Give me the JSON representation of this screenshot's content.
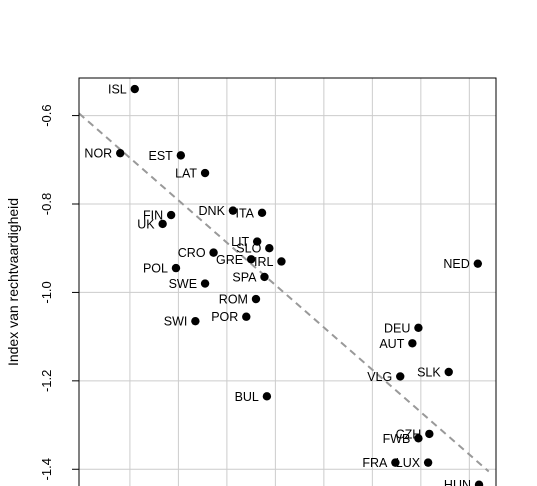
{
  "chart_data": {
    "type": "scatter",
    "title": "",
    "xlabel": "",
    "ylabel": "Index van rechtvaardigheid",
    "xlim": [
      -0.71,
      1.01
    ],
    "ylim": [
      -1.465,
      -0.515
    ],
    "yticks": [
      -0.6,
      -0.8,
      -1.0,
      -1.2,
      -1.4
    ],
    "ytick_labels": [
      "-0.6",
      "-0.8",
      "-1.0",
      "-1.2",
      "-1.4"
    ],
    "xgrid": [
      -0.5,
      -0.3,
      -0.1,
      0.1,
      0.3,
      0.5,
      0.7,
      0.9
    ],
    "grid": true,
    "trendline": {
      "x": [
        -0.71,
        0.98
      ],
      "y": [
        -0.595,
        -1.405
      ],
      "style": "dashed",
      "color": "#999999"
    },
    "points": [
      {
        "label": "ISL",
        "x": -0.48,
        "y": -0.54,
        "label_side": "left"
      },
      {
        "label": "NOR",
        "x": -0.54,
        "y": -0.685,
        "label_side": "left"
      },
      {
        "label": "EST",
        "x": -0.29,
        "y": -0.69,
        "label_side": "left"
      },
      {
        "label": "LAT",
        "x": -0.19,
        "y": -0.73,
        "label_side": "left"
      },
      {
        "label": "FIN",
        "x": -0.33,
        "y": -0.825,
        "label_side": "left"
      },
      {
        "label": "UK",
        "x": -0.365,
        "y": -0.845,
        "label_side": "left"
      },
      {
        "label": "DNK",
        "x": -0.075,
        "y": -0.815,
        "label_side": "left"
      },
      {
        "label": "ITA",
        "x": 0.045,
        "y": -0.82,
        "label_side": "left"
      },
      {
        "label": "LIT",
        "x": 0.025,
        "y": -0.885,
        "label_side": "left"
      },
      {
        "label": "SLO",
        "x": 0.075,
        "y": -0.9,
        "label_side": "left"
      },
      {
        "label": "GRE",
        "x": 0.0,
        "y": -0.925,
        "label_side": "left"
      },
      {
        "label": "IRL",
        "x": 0.125,
        "y": -0.93,
        "label_side": "left"
      },
      {
        "label": "CRO",
        "x": -0.155,
        "y": -0.91,
        "label_side": "left"
      },
      {
        "label": "POL",
        "x": -0.31,
        "y": -0.945,
        "label_side": "left"
      },
      {
        "label": "SPA",
        "x": 0.055,
        "y": -0.965,
        "label_side": "left"
      },
      {
        "label": "SWE",
        "x": -0.19,
        "y": -0.98,
        "label_side": "left"
      },
      {
        "label": "ROM",
        "x": 0.02,
        "y": -1.015,
        "label_side": "left"
      },
      {
        "label": "POR",
        "x": -0.02,
        "y": -1.055,
        "label_side": "left"
      },
      {
        "label": "SWI",
        "x": -0.23,
        "y": -1.065,
        "label_side": "left"
      },
      {
        "label": "NED",
        "x": 0.935,
        "y": -0.935,
        "label_side": "left"
      },
      {
        "label": "DEU",
        "x": 0.69,
        "y": -1.08,
        "label_side": "left"
      },
      {
        "label": "AUT",
        "x": 0.665,
        "y": -1.115,
        "label_side": "left"
      },
      {
        "label": "SLK",
        "x": 0.815,
        "y": -1.18,
        "label_side": "left"
      },
      {
        "label": "VLG",
        "x": 0.615,
        "y": -1.19,
        "label_side": "left"
      },
      {
        "label": "BUL",
        "x": 0.065,
        "y": -1.235,
        "label_side": "left"
      },
      {
        "label": "CZH",
        "x": 0.735,
        "y": -1.32,
        "label_side": "left"
      },
      {
        "label": "FWB",
        "x": 0.69,
        "y": -1.33,
        "label_side": "left"
      },
      {
        "label": "LUX",
        "x": 0.73,
        "y": -1.385,
        "label_side": "left"
      },
      {
        "label": "FRA",
        "x": 0.595,
        "y": -1.385,
        "label_side": "left"
      },
      {
        "label": "HUN",
        "x": 0.94,
        "y": -1.435,
        "label_side": "left"
      }
    ]
  }
}
